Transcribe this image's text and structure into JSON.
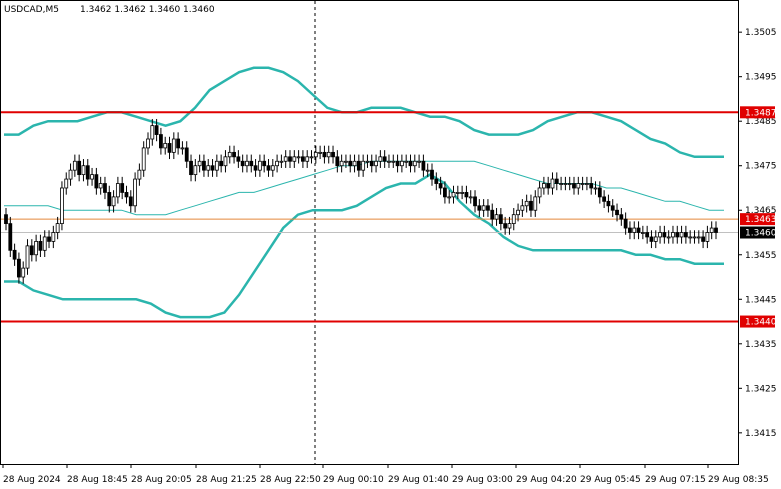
{
  "header": {
    "symbol_tf": "USDCAD,M5",
    "ohlc": "1.3462 1.3462 1.3460 1.3460"
  },
  "colors": {
    "background": "#ffffff",
    "candle": "#000000",
    "band": "#2bb5ad",
    "level_line": "#e00000",
    "price_line": "#e4883a",
    "bid_line": "#c0c0c0",
    "label_red_bg": "#e00000",
    "label_black_bg": "#000000"
  },
  "chart_data": {
    "type": "candlestick",
    "y_ticks": [
      "1.3505",
      "1.3495",
      "1.3485",
      "1.3475",
      "1.3465",
      "1.3455",
      "1.3445",
      "1.3435",
      "1.3425",
      "1.3415"
    ],
    "y_tick_values": [
      1.3505,
      1.3495,
      1.3485,
      1.3475,
      1.3465,
      1.3455,
      1.3445,
      1.3435,
      1.3425,
      1.3415
    ],
    "x_ticks": [
      "28 Aug 2024",
      "28 Aug 18:45",
      "28 Aug 20:05",
      "28 Aug 21:25",
      "28 Aug 22:50",
      "29 Aug 00:10",
      "29 Aug 01:40",
      "29 Aug 03:00",
      "29 Aug 04:20",
      "29 Aug 05:45",
      "29 Aug 07:15",
      "29 Aug 08:35"
    ],
    "ylim": [
      1.3408,
      1.3512
    ],
    "levels": [
      {
        "label": "1.3487",
        "value": 1.3487,
        "style": "red-line"
      },
      {
        "label": "1.3440",
        "value": 1.344,
        "style": "red-line"
      },
      {
        "label": "1.3463",
        "value": 1.3463,
        "style": "price-line"
      },
      {
        "label": "1.3460",
        "value": 1.346,
        "style": "bid"
      }
    ],
    "close": [
      1.3462,
      1.3456,
      1.3454,
      1.345,
      1.3452,
      1.3457,
      1.3455,
      1.3458,
      1.3456,
      1.3459,
      1.3458,
      1.346,
      1.3462,
      1.347,
      1.3472,
      1.3474,
      1.3476,
      1.3473,
      1.3475,
      1.3472,
      1.3473,
      1.347,
      1.3471,
      1.3469,
      1.3466,
      1.3468,
      1.3471,
      1.3469,
      1.3468,
      1.3466,
      1.3472,
      1.3474,
      1.3479,
      1.3481,
      1.3484,
      1.3482,
      1.3479,
      1.348,
      1.3478,
      1.3481,
      1.3479,
      1.3479,
      1.3476,
      1.3473,
      1.3475,
      1.3476,
      1.3474,
      1.3475,
      1.3474,
      1.3476,
      1.3475,
      1.3477,
      1.3478,
      1.3477,
      1.3476,
      1.3475,
      1.3476,
      1.3475,
      1.3474,
      1.3476,
      1.3475,
      1.3474,
      1.3475,
      1.3476,
      1.3476,
      1.3477,
      1.3476,
      1.3477,
      1.3477,
      1.3476,
      1.3477,
      1.3477,
      1.3478,
      1.3478,
      1.3477,
      1.3478,
      1.3477,
      1.3475,
      1.3476,
      1.3476,
      1.3475,
      1.3476,
      1.3474,
      1.3476,
      1.3476,
      1.3475,
      1.3476,
      1.3477,
      1.3476,
      1.3476,
      1.3476,
      1.3475,
      1.3476,
      1.3476,
      1.3475,
      1.3476,
      1.3476,
      1.3474,
      1.3474,
      1.3472,
      1.3471,
      1.347,
      1.3468,
      1.3468,
      1.3469,
      1.3469,
      1.3469,
      1.3468,
      1.3468,
      1.3466,
      1.3465,
      1.3466,
      1.3465,
      1.3463,
      1.3464,
      1.3462,
      1.3461,
      1.3462,
      1.3464,
      1.3465,
      1.3466,
      1.3467,
      1.3465,
      1.3468,
      1.347,
      1.3471,
      1.347,
      1.3472,
      1.3471,
      1.3471,
      1.3471,
      1.3471,
      1.347,
      1.3471,
      1.3471,
      1.3471,
      1.347,
      1.347,
      1.3468,
      1.3467,
      1.3466,
      1.3465,
      1.3464,
      1.3463,
      1.3461,
      1.346,
      1.3461,
      1.346,
      1.346,
      1.3459,
      1.3458,
      1.3459,
      1.346,
      1.3459,
      1.3459,
      1.346,
      1.3459,
      1.346,
      1.3459,
      1.3459,
      1.3459,
      1.3459,
      1.3458,
      1.346,
      1.3461,
      1.346
    ],
    "bb_upper": [
      1.3482,
      1.3482,
      1.3484,
      1.3485,
      1.3485,
      1.3485,
      1.3486,
      1.3487,
      1.3487,
      1.3486,
      1.3485,
      1.3484,
      1.3485,
      1.3488,
      1.3492,
      1.3494,
      1.3496,
      1.3497,
      1.3497,
      1.3496,
      1.3494,
      1.3491,
      1.3488,
      1.3487,
      1.3487,
      1.3488,
      1.3488,
      1.3488,
      1.3487,
      1.3486,
      1.3486,
      1.3485,
      1.3483,
      1.3482,
      1.3482,
      1.3482,
      1.3483,
      1.3485,
      1.3486,
      1.3487,
      1.3487,
      1.3486,
      1.3485,
      1.3483,
      1.3481,
      1.348,
      1.3478,
      1.3477,
      1.3477,
      1.3477
    ],
    "bb_middle": [
      1.3466,
      1.3466,
      1.3466,
      1.3466,
      1.3465,
      1.3465,
      1.3465,
      1.3465,
      1.3465,
      1.3464,
      1.3464,
      1.3464,
      1.3465,
      1.3466,
      1.3467,
      1.3468,
      1.3469,
      1.3469,
      1.347,
      1.3471,
      1.3472,
      1.3473,
      1.3474,
      1.3475,
      1.3475,
      1.3476,
      1.3476,
      1.3476,
      1.3476,
      1.3476,
      1.3476,
      1.3476,
      1.3476,
      1.3475,
      1.3474,
      1.3473,
      1.3472,
      1.3471,
      1.3471,
      1.3471,
      1.3471,
      1.347,
      1.347,
      1.3469,
      1.3468,
      1.3467,
      1.3467,
      1.3466,
      1.3465,
      1.3465
    ],
    "bb_lower": [
      1.3449,
      1.3449,
      1.3447,
      1.3446,
      1.3445,
      1.3445,
      1.3445,
      1.3445,
      1.3445,
      1.3445,
      1.3444,
      1.3442,
      1.3441,
      1.3441,
      1.3441,
      1.3442,
      1.3446,
      1.3451,
      1.3456,
      1.3461,
      1.3464,
      1.3465,
      1.3465,
      1.3465,
      1.3466,
      1.3468,
      1.347,
      1.3471,
      1.3471,
      1.3473,
      1.3471,
      1.3467,
      1.3464,
      1.3462,
      1.3459,
      1.3457,
      1.3456,
      1.3456,
      1.3456,
      1.3456,
      1.3456,
      1.3456,
      1.3456,
      1.3455,
      1.3455,
      1.3454,
      1.3454,
      1.3453,
      1.3453,
      1.3453
    ]
  }
}
